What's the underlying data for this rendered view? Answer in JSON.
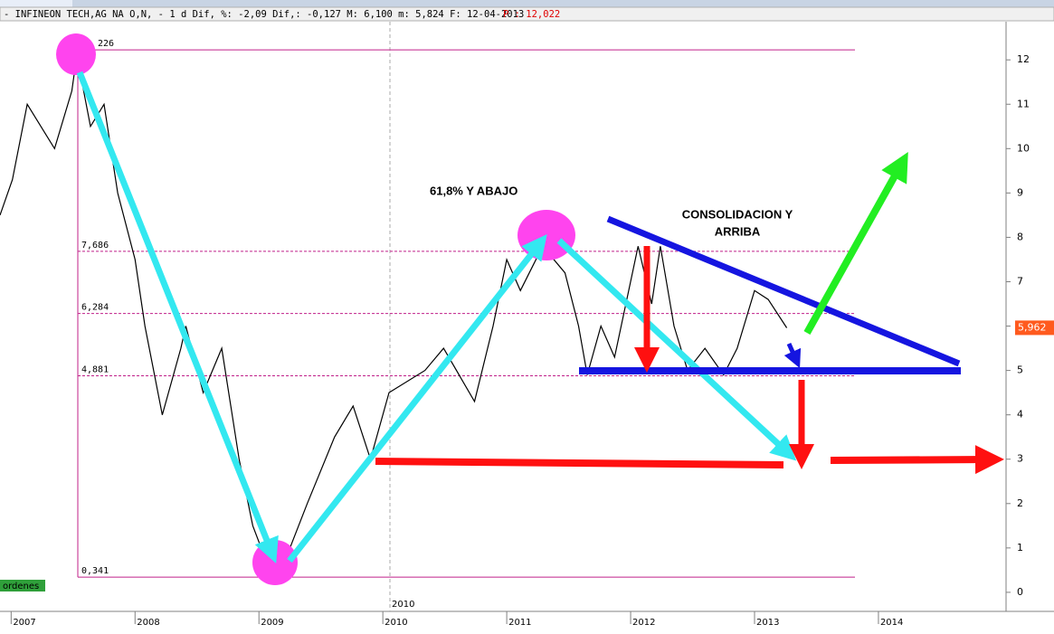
{
  "chart_data": {
    "type": "line",
    "title": "- INFINEON TECH,AG NA O,N, -  1 d Dif, %: -2,09 Dif,: -0,127 M: 6,100 m: 5,824 F: 12-04-2013",
    "title_price": "P : 12,022",
    "annotations": [
      "61,8% Y ABAJO",
      "CONSOLIDACION Y",
      "ARRIBA"
    ],
    "side_label": "ordenes",
    "period_label": "2010",
    "series": [
      {
        "name": "INFINEON TECH,AG NA O,N,",
        "color": "#000000",
        "x": [
          2006.91,
          2007.01,
          2007.13,
          2007.35,
          2007.49,
          2007.53,
          2007.64,
          2007.75,
          2007.86,
          2008.0,
          2008.08,
          2008.22,
          2008.37,
          2008.41,
          2008.55,
          2008.7,
          2008.84,
          2008.95,
          2009.1,
          2009.25,
          2009.39,
          2009.61,
          2009.76,
          2009.9,
          2010.05,
          2010.34,
          2010.49,
          2010.74,
          2010.89,
          2011.0,
          2011.11,
          2011.29,
          2011.47,
          2011.58,
          2011.65,
          2011.76,
          2011.87,
          2012.06,
          2012.17,
          2012.24,
          2012.35,
          2012.46,
          2012.6,
          2012.75,
          2012.86,
          2013.0,
          2013.11,
          2013.26
        ],
        "values": [
          8.5,
          9.3,
          11,
          10,
          11.3,
          12.1,
          10.5,
          11,
          9,
          7.5,
          6,
          4,
          5.5,
          6,
          4.5,
          5.5,
          3,
          1.5,
          0.4,
          1,
          2,
          3.5,
          4.2,
          3,
          4.5,
          5,
          5.5,
          4.3,
          6,
          7.5,
          6.8,
          7.8,
          7.2,
          6,
          4.9,
          6,
          5.3,
          7.8,
          6.5,
          7.8,
          6,
          5,
          5.5,
          4.9,
          5.5,
          6.8,
          6.6,
          5.96
        ]
      }
    ],
    "levels": [
      {
        "value": 12.226,
        "label": "226"
      },
      {
        "value": 7.686,
        "label": "7,686"
      },
      {
        "value": 6.284,
        "label": "6,284"
      },
      {
        "value": 4.881,
        "label": "4,881"
      },
      {
        "value": 0.341,
        "label": "0,341"
      }
    ],
    "last_price": {
      "value": 5.962,
      "label": "5,962"
    },
    "xlim": [
      2006.91,
      2015.03
    ],
    "xticks": [
      2007,
      2008,
      2009,
      2010,
      2011,
      2012,
      2013,
      2014
    ],
    "ylim": [
      -0.43,
      12.86
    ],
    "yticks": [
      0,
      1,
      2,
      3,
      4,
      5,
      6,
      7,
      8,
      9,
      10,
      11,
      12
    ]
  }
}
